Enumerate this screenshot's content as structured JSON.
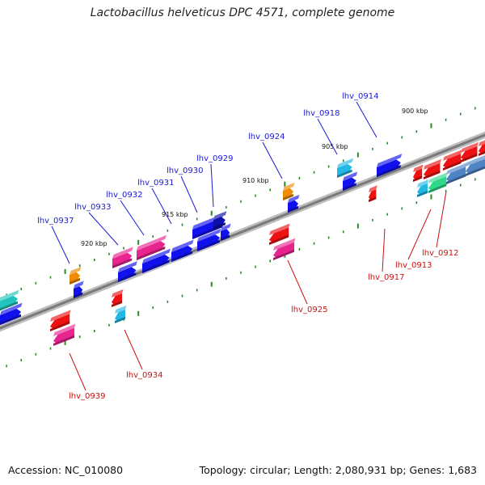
{
  "title": "Lactobacillus helveticus DPC 4571, complete genome",
  "footer": {
    "accession": "Accession: NC_010080",
    "topology": "Topology: circular; Length: 2,080,931 bp; Genes: 1,683"
  },
  "ticks": [
    {
      "label": "900 kbp"
    },
    {
      "label": "905 kbp"
    },
    {
      "label": "910 kbp"
    },
    {
      "label": "915 kbp"
    },
    {
      "label": "920 kbp"
    }
  ],
  "forward_labels": [
    {
      "text": "lhv_0914"
    },
    {
      "text": "lhv_0918"
    },
    {
      "text": "lhv_0924"
    },
    {
      "text": "lhv_0929"
    },
    {
      "text": "lhv_0930"
    },
    {
      "text": "lhv_0931"
    },
    {
      "text": "lhv_0932"
    },
    {
      "text": "lhv_0933"
    },
    {
      "text": "lhv_0937"
    }
  ],
  "reverse_labels": [
    {
      "text": "lhv_0912"
    },
    {
      "text": "lhv_0913"
    },
    {
      "text": "lhv_0917"
    },
    {
      "text": "lhv_0925"
    },
    {
      "text": "lhv_0934"
    },
    {
      "text": "lhv_0939"
    }
  ],
  "colors": {
    "forward_label": "#1a1ad6",
    "reverse_label": "#cc1111",
    "backbone": "#888888",
    "tick": "#2a8a2a",
    "blue": "#1111ee",
    "red": "#ee1111",
    "magenta": "#e8258f",
    "orange": "#f08a00",
    "cyan": "#22b8e6",
    "teal": "#22c4bb",
    "green": "#2ed98a",
    "navy": "#0d0da8",
    "steel": "#4f84c4"
  }
}
